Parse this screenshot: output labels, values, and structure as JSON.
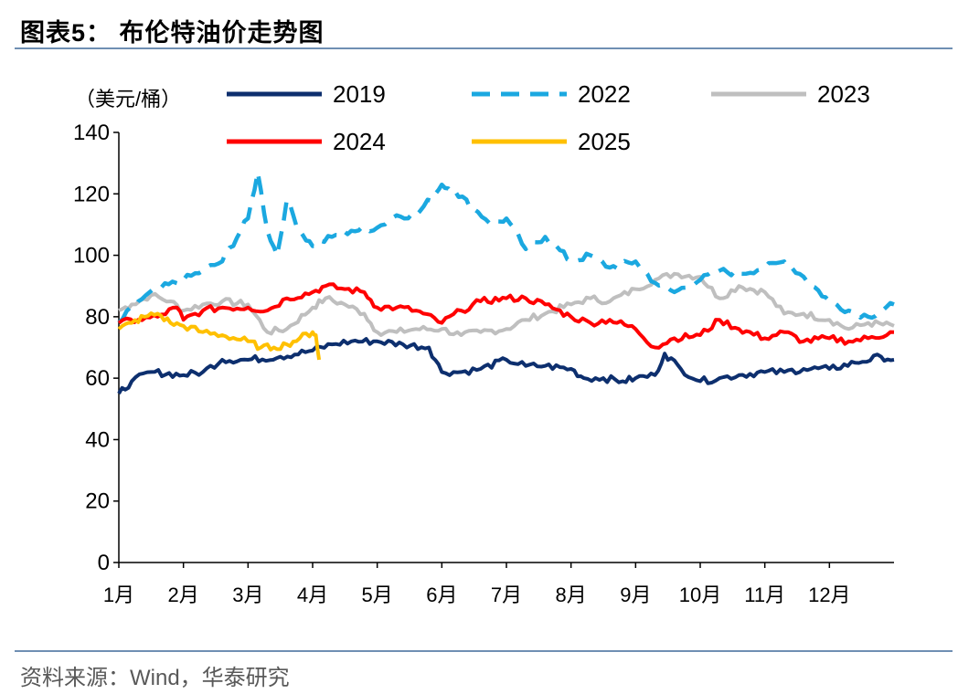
{
  "header": {
    "title": "图表5：  布伦特油价走势图"
  },
  "footer": {
    "source": "资料来源：Wind，华泰研究"
  },
  "colors": {
    "2019": "#0d2f6e",
    "2022": "#1ba8e0",
    "2023": "#bfbfbf",
    "2024": "#ff0000",
    "2025": "#ffc000",
    "rule": "#6f8fb3"
  },
  "chart_data": {
    "type": "line",
    "ylabel": "（美元/桶）",
    "xlabel": "",
    "ylim": [
      0,
      140
    ],
    "yticks": [
      0,
      20,
      40,
      60,
      80,
      100,
      120,
      140
    ],
    "xlim": [
      1,
      13
    ],
    "xticks": [
      "1月",
      "2月",
      "3月",
      "4月",
      "5月",
      "6月",
      "7月",
      "8月",
      "9月",
      "10月",
      "11月",
      "12月"
    ],
    "legend": "top",
    "grid": false,
    "series": [
      {
        "name": "2019",
        "style": "solid",
        "x": [
          1.0,
          1.2,
          1.5,
          2.0,
          2.3,
          2.6,
          3.0,
          3.5,
          4.0,
          4.3,
          4.6,
          5.0,
          5.4,
          5.8,
          6.0,
          6.3,
          6.6,
          7.0,
          7.3,
          7.6,
          8.0,
          8.2,
          8.5,
          8.8,
          9.0,
          9.3,
          9.45,
          9.7,
          10.0,
          10.3,
          10.6,
          11.0,
          11.3,
          11.6,
          12.0,
          12.4,
          12.8,
          13.0
        ],
        "values": [
          55,
          59,
          62,
          61,
          62,
          66,
          66,
          67,
          69,
          71,
          72,
          72,
          71,
          70,
          62,
          62,
          63,
          66,
          64,
          64,
          63,
          60,
          60,
          59,
          60,
          61,
          68,
          63,
          59,
          60,
          61,
          62,
          62,
          63,
          63,
          65,
          67,
          66
        ]
      },
      {
        "name": "2022",
        "style": "dashed",
        "x": [
          1.0,
          1.3,
          1.6,
          2.0,
          2.3,
          2.6,
          3.0,
          3.15,
          3.3,
          3.45,
          3.6,
          3.8,
          4.0,
          4.3,
          4.6,
          5.0,
          5.3,
          5.6,
          5.9,
          6.0,
          6.2,
          6.5,
          6.8,
          7.0,
          7.3,
          7.6,
          8.0,
          8.3,
          8.6,
          9.0,
          9.3,
          9.6,
          10.0,
          10.3,
          10.6,
          11.0,
          11.3,
          11.6,
          12.0,
          12.3,
          12.6,
          13.0
        ],
        "values": [
          78,
          85,
          89,
          92,
          95,
          98,
          112,
          127,
          108,
          100,
          118,
          108,
          103,
          106,
          108,
          109,
          113,
          113,
          120,
          123,
          121,
          115,
          110,
          112,
          102,
          106,
          98,
          100,
          96,
          98,
          91,
          88,
          92,
          95,
          94,
          96,
          98,
          93,
          85,
          82,
          80,
          84
        ]
      },
      {
        "name": "2023",
        "style": "solid",
        "x": [
          1.0,
          1.2,
          1.5,
          1.8,
          2.0,
          2.3,
          2.6,
          3.0,
          3.3,
          3.6,
          4.0,
          4.2,
          4.5,
          4.8,
          5.0,
          5.3,
          5.6,
          6.0,
          6.3,
          6.6,
          7.0,
          7.3,
          7.6,
          8.0,
          8.3,
          8.6,
          9.0,
          9.3,
          9.6,
          10.0,
          10.3,
          10.6,
          11.0,
          11.3,
          11.6,
          12.0,
          12.3,
          12.6,
          13.0
        ],
        "values": [
          82,
          84,
          87,
          85,
          82,
          84,
          85,
          84,
          75,
          76,
          83,
          86,
          84,
          81,
          75,
          75,
          76,
          76,
          74,
          75,
          76,
          79,
          81,
          84,
          86,
          85,
          89,
          92,
          94,
          93,
          86,
          90,
          88,
          81,
          81,
          79,
          76,
          78,
          77
        ]
      },
      {
        "name": "2024",
        "style": "solid",
        "x": [
          1.0,
          1.3,
          1.6,
          1.9,
          2.0,
          2.3,
          2.6,
          3.0,
          3.3,
          3.6,
          4.0,
          4.2,
          4.5,
          4.8,
          5.0,
          5.3,
          5.6,
          6.0,
          6.3,
          6.6,
          7.0,
          7.3,
          7.6,
          8.0,
          8.3,
          8.6,
          9.0,
          9.3,
          9.6,
          10.0,
          10.3,
          10.6,
          11.0,
          11.3,
          11.6,
          12.0,
          12.3,
          12.6,
          13.0
        ],
        "values": [
          78,
          79,
          80,
          83,
          79,
          82,
          83,
          83,
          82,
          86,
          88,
          90,
          89,
          88,
          83,
          83,
          82,
          78,
          82,
          85,
          86,
          86,
          84,
          80,
          78,
          79,
          76,
          70,
          73,
          74,
          79,
          76,
          73,
          75,
          72,
          73,
          72,
          73,
          75
        ]
      },
      {
        "name": "2025",
        "style": "solid",
        "x": [
          1.0,
          1.2,
          1.4,
          1.6,
          1.8,
          2.0,
          2.3,
          2.6,
          3.0,
          3.2,
          3.4,
          3.6,
          3.8,
          4.0,
          4.05,
          4.1
        ],
        "values": [
          76,
          78,
          80,
          81,
          78,
          77,
          75,
          74,
          72,
          70,
          70,
          71,
          73,
          75,
          74,
          66
        ]
      }
    ]
  }
}
